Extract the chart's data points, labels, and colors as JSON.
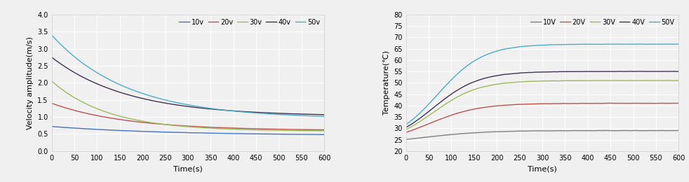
{
  "left": {
    "xlabel": "Time(s)",
    "ylabel": "Velocity amplitude(m/s)",
    "xlim": [
      0,
      600
    ],
    "ylim": [
      0.0,
      4.0
    ],
    "yticks": [
      0.0,
      0.5,
      1.0,
      1.5,
      2.0,
      2.5,
      3.0,
      3.5,
      4.0
    ],
    "xticks": [
      0,
      50,
      100,
      150,
      200,
      250,
      300,
      350,
      400,
      450,
      500,
      550,
      600
    ],
    "series": [
      {
        "label": "10v",
        "color": "#4472C4",
        "start": 0.72,
        "end": 0.46,
        "decay": 0.004
      },
      {
        "label": "20v",
        "color": "#C0504D",
        "start": 1.4,
        "end": 0.6,
        "decay": 0.006
      },
      {
        "label": "30v",
        "color": "#9BBB59",
        "start": 2.05,
        "end": 0.58,
        "decay": 0.008
      },
      {
        "label": "40v",
        "color": "#403152",
        "start": 2.75,
        "end": 1.02,
        "decay": 0.006
      },
      {
        "label": "50v",
        "color": "#4BACC6",
        "start": 3.4,
        "end": 0.95,
        "decay": 0.006
      }
    ]
  },
  "right": {
    "xlabel": "Time(s)",
    "ylabel": "Temperature(℃)",
    "xlim": [
      0,
      600
    ],
    "ylim": [
      20,
      80
    ],
    "yticks": [
      20,
      25,
      30,
      35,
      40,
      45,
      50,
      55,
      60,
      65,
      70,
      75,
      80
    ],
    "xticks": [
      0,
      50,
      100,
      150,
      200,
      250,
      300,
      350,
      400,
      450,
      500,
      550,
      600
    ],
    "series": [
      {
        "label": "10V",
        "color": "#7F7F7F",
        "start": 23.0,
        "plateau": 29.0,
        "k": 0.015,
        "t0": 40
      },
      {
        "label": "20V",
        "color": "#C0504D",
        "start": 23.0,
        "plateau": 41.0,
        "k": 0.018,
        "t0": 50
      },
      {
        "label": "30V",
        "color": "#9BBB59",
        "start": 23.0,
        "plateau": 51.0,
        "k": 0.02,
        "t0": 60
      },
      {
        "label": "40V",
        "color": "#403152",
        "start": 23.0,
        "plateau": 55.0,
        "k": 0.02,
        "t0": 60
      },
      {
        "label": "50V",
        "color": "#4BACC6",
        "start": 23.0,
        "plateau": 67.0,
        "k": 0.02,
        "t0": 70
      }
    ]
  },
  "bg_color": "#f0f0f0",
  "plot_bg": "#f0f0f0",
  "grid_color": "#ffffff",
  "tick_fontsize": 7,
  "label_fontsize": 8,
  "legend_fontsize": 7,
  "line_width": 1.0
}
